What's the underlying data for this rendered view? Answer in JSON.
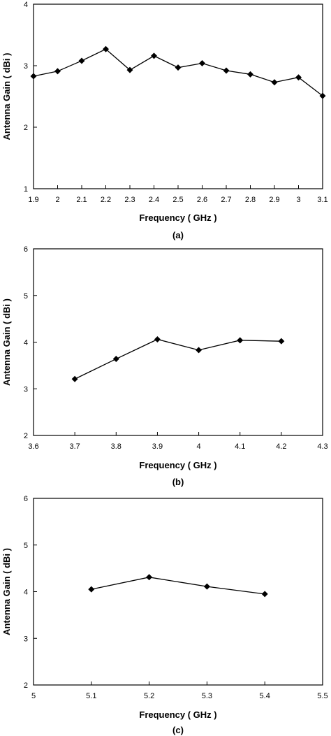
{
  "chart_data": [
    {
      "type": "line",
      "caption": "(a)",
      "xlabel": "Frequency ( GHz )",
      "ylabel": "Antenna Gain ( dBi )",
      "xlim": [
        1.9,
        3.1
      ],
      "ylim": [
        1,
        4
      ],
      "xticks": [
        "1.9",
        "2",
        "2.1",
        "2.2",
        "2.3",
        "2.4",
        "2.5",
        "2.6",
        "2.7",
        "2.8",
        "2.9",
        "3",
        "3.1"
      ],
      "yticks": [
        "1",
        "2",
        "3",
        "4"
      ],
      "grid": false,
      "marker": "diamond",
      "line_color": "#000000",
      "series": [
        {
          "x": [
            1.9,
            2.0,
            2.1,
            2.2,
            2.3,
            2.4,
            2.5,
            2.6,
            2.7,
            2.8,
            2.9,
            3.0,
            3.1
          ],
          "y": [
            2.83,
            2.91,
            3.08,
            3.27,
            2.93,
            3.16,
            2.97,
            3.04,
            2.92,
            2.86,
            2.73,
            2.81,
            2.51
          ]
        }
      ]
    },
    {
      "type": "line",
      "caption": "(b)",
      "xlabel": "Frequency ( GHz )",
      "ylabel": "Antenna Gain ( dBi )",
      "xlim": [
        3.6,
        4.3
      ],
      "ylim": [
        2,
        6
      ],
      "xticks": [
        "3.6",
        "3.7",
        "3.8",
        "3.9",
        "4",
        "4.1",
        "4.2",
        "4.3"
      ],
      "yticks": [
        "2",
        "3",
        "4",
        "5",
        "6"
      ],
      "grid": false,
      "marker": "diamond",
      "line_color": "#000000",
      "series": [
        {
          "x": [
            3.7,
            3.8,
            3.9,
            4.0,
            4.1,
            4.2
          ],
          "y": [
            3.21,
            3.64,
            4.06,
            3.83,
            4.04,
            4.02
          ]
        }
      ]
    },
    {
      "type": "line",
      "caption": "(c)",
      "xlabel": "Frequency ( GHz )",
      "ylabel": "Antenna Gain ( dBi )",
      "xlim": [
        5.0,
        5.5
      ],
      "ylim": [
        2,
        6
      ],
      "xticks": [
        "5",
        "5.1",
        "5.2",
        "5.3",
        "5.4",
        "5.5"
      ],
      "yticks": [
        "2",
        "3",
        "4",
        "5",
        "6"
      ],
      "grid": false,
      "marker": "diamond",
      "line_color": "#000000",
      "series": [
        {
          "x": [
            5.1,
            5.2,
            5.3,
            5.4
          ],
          "y": [
            4.05,
            4.31,
            4.11,
            3.95
          ]
        }
      ]
    }
  ]
}
